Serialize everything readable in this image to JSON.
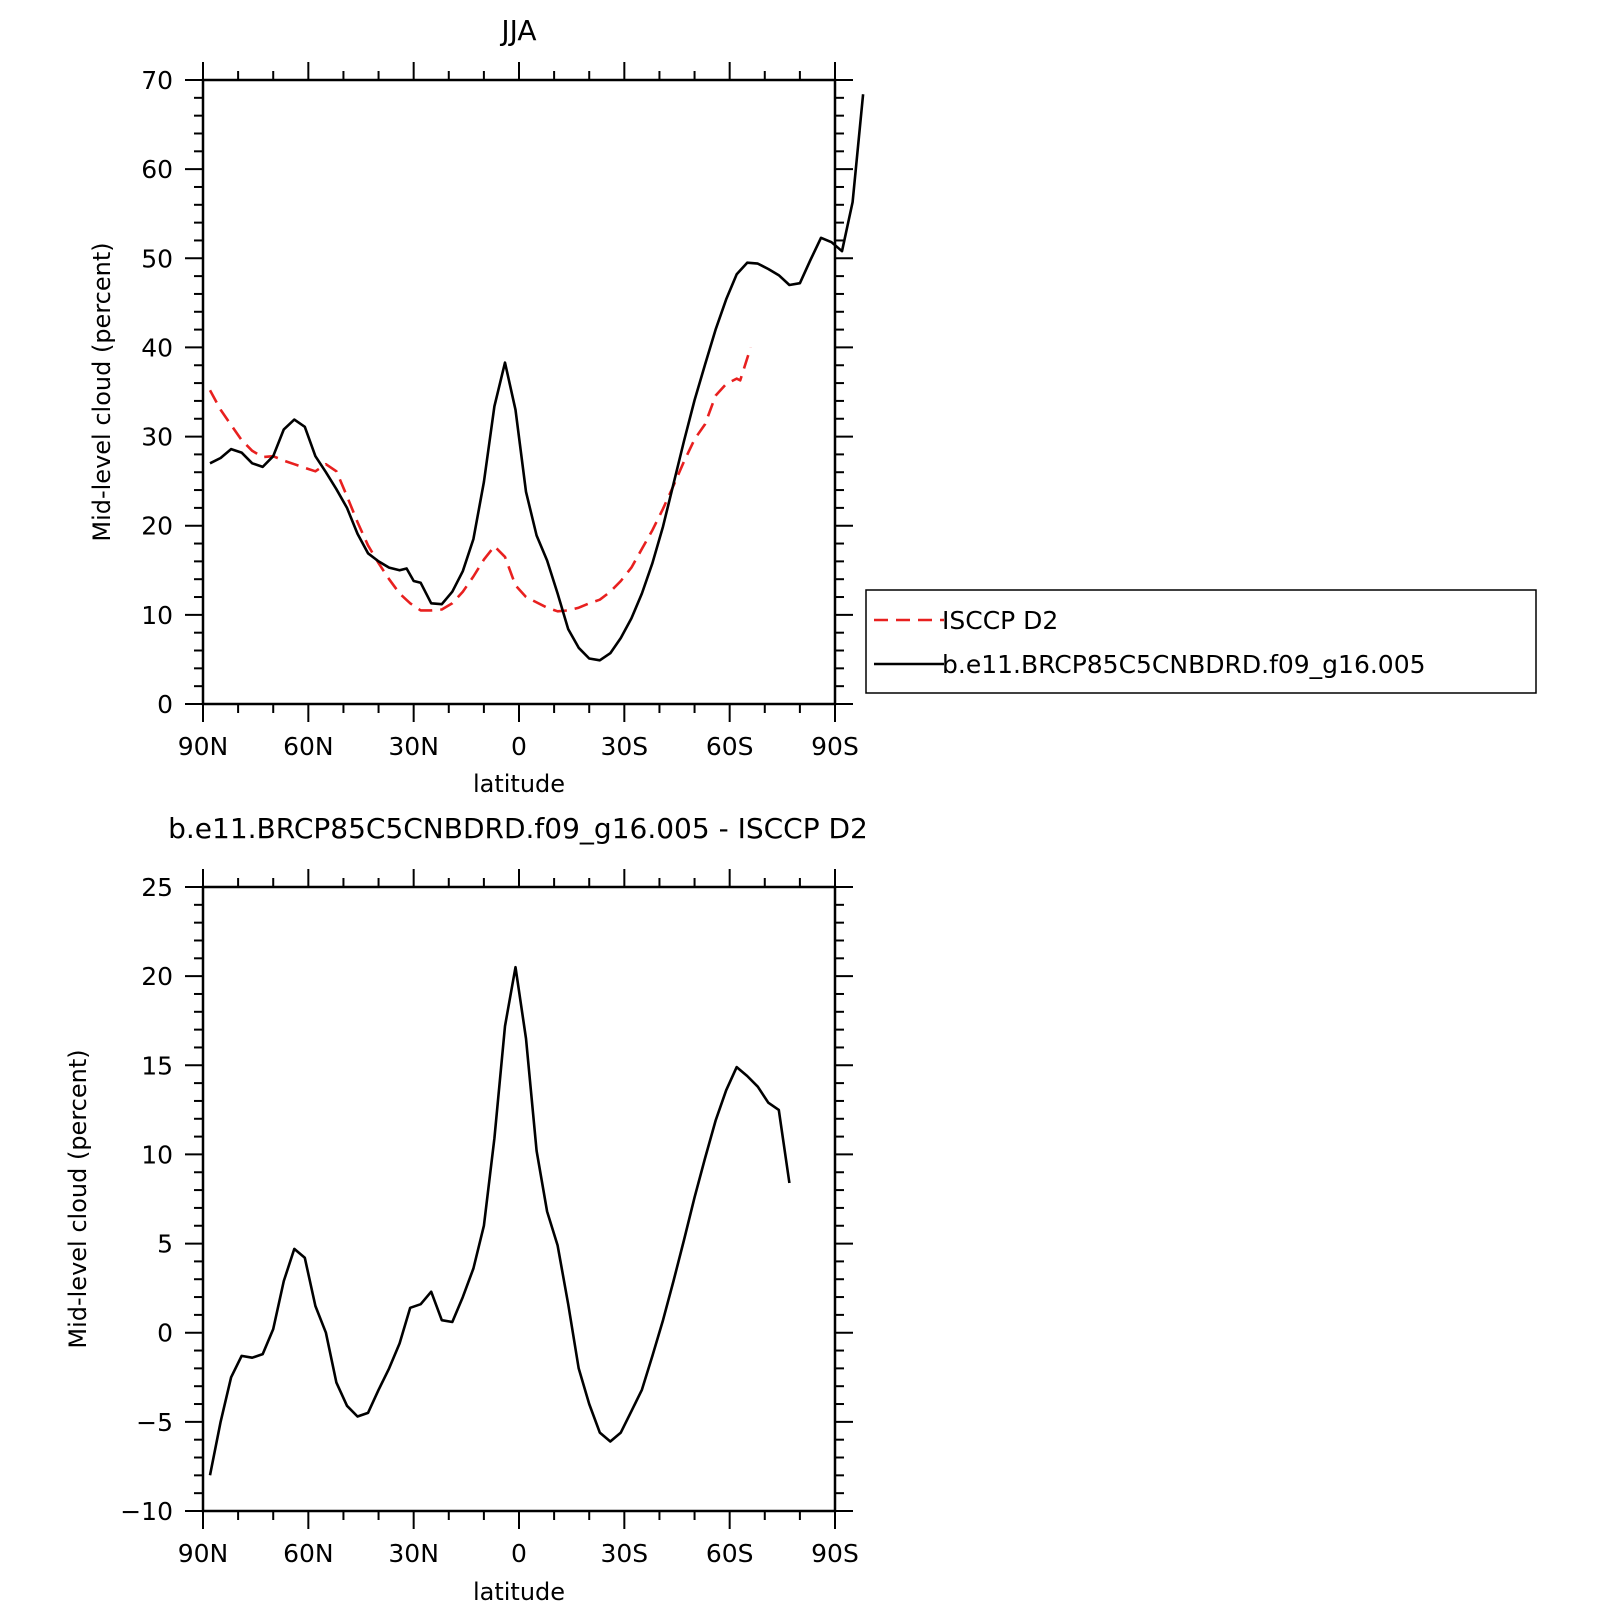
{
  "chart_data": [
    {
      "type": "line",
      "title": "JJA",
      "xlabel": "latitude",
      "ylabel": "Mid-level cloud (percent)",
      "xlim": [
        90,
        -90
      ],
      "ylim": [
        0,
        70
      ],
      "x_ticks": [
        {
          "value": 90,
          "label": "90N"
        },
        {
          "value": 60,
          "label": "60N"
        },
        {
          "value": 30,
          "label": "30N"
        },
        {
          "value": 0,
          "label": "0"
        },
        {
          "value": -30,
          "label": "30S"
        },
        {
          "value": -60,
          "label": "60S"
        },
        {
          "value": -90,
          "label": "90S"
        }
      ],
      "y_ticks": [
        {
          "value": 0,
          "label": "0"
        },
        {
          "value": 10,
          "label": "10"
        },
        {
          "value": 20,
          "label": "20"
        },
        {
          "value": 30,
          "label": "30"
        },
        {
          "value": 40,
          "label": "40"
        },
        {
          "value": 50,
          "label": "50"
        },
        {
          "value": 60,
          "label": "60"
        },
        {
          "value": 70,
          "label": "70"
        }
      ],
      "grid": false,
      "legend": {
        "placement": "right",
        "entries": [
          "ISCCP D2",
          "b.e11.BRCP85C5CNBDRD.f09_g16.005"
        ]
      },
      "series": [
        {
          "name": "ISCCP D2",
          "color": "#e8201f",
          "dash": "dashed",
          "points": [
            [
              88,
              35.2
            ],
            [
              85,
              33
            ],
            [
              82,
              31.3
            ],
            [
              79,
              29.6
            ],
            [
              76,
              28.4
            ],
            [
              73,
              27.7
            ],
            [
              70,
              27.8
            ],
            [
              67,
              27.3
            ],
            [
              64,
              26.9
            ],
            [
              61,
              26.5
            ],
            [
              58,
              26.1
            ],
            [
              55,
              26.9
            ],
            [
              52,
              26.1
            ],
            [
              49,
              23.3
            ],
            [
              46,
              20.4
            ],
            [
              43,
              17.8
            ],
            [
              40,
              15.8
            ],
            [
              37,
              14
            ],
            [
              34,
              12.4
            ],
            [
              31,
              11.3
            ],
            [
              28,
              10.5
            ],
            [
              25,
              10.5
            ],
            [
              22,
              10.6
            ],
            [
              19,
              11.3
            ],
            [
              16,
              12.6
            ],
            [
              13,
              14.3
            ],
            [
              10,
              16.2
            ],
            [
              7,
              17.7
            ],
            [
              4,
              16.5
            ],
            [
              1,
              13.3
            ],
            [
              -2,
              12
            ],
            [
              -5,
              11.4
            ],
            [
              -8,
              10.8
            ],
            [
              -11,
              10.4
            ],
            [
              -14,
              10.5
            ],
            [
              -17,
              10.8
            ],
            [
              -20,
              11.3
            ],
            [
              -23,
              11.7
            ],
            [
              -26,
              12.6
            ],
            [
              -29,
              13.8
            ],
            [
              -32,
              15.3
            ],
            [
              -35,
              17.4
            ],
            [
              -38,
              19.5
            ],
            [
              -41,
              21.9
            ],
            [
              -44,
              24.5
            ],
            [
              -47,
              27.2
            ],
            [
              -50,
              29.7
            ],
            [
              -53,
              31.4
            ],
            [
              -56,
              34.6
            ],
            [
              -59,
              35.9
            ],
            [
              -62,
              36.5
            ],
            [
              -63,
              36.3
            ],
            [
              -66,
              40
            ]
          ]
        },
        {
          "name": "b.e11.BRCP85C5CNBDRD.f09_g16.005",
          "color": "#000000",
          "dash": "solid",
          "points": [
            [
              88,
              27
            ],
            [
              85,
              27.6
            ],
            [
              82,
              28.6
            ],
            [
              79,
              28.2
            ],
            [
              76,
              27
            ],
            [
              73,
              26.6
            ],
            [
              70,
              27.8
            ],
            [
              67,
              30.8
            ],
            [
              64,
              31.9
            ],
            [
              61,
              31.1
            ],
            [
              58,
              27.8
            ],
            [
              55,
              26
            ],
            [
              52,
              24.1
            ],
            [
              49,
              22
            ],
            [
              46,
              19.1
            ],
            [
              43,
              16.9
            ],
            [
              40,
              16
            ],
            [
              37,
              15.3
            ],
            [
              34,
              15
            ],
            [
              32,
              15.2
            ],
            [
              30,
              13.8
            ],
            [
              28,
              13.6
            ],
            [
              25,
              11.3
            ],
            [
              22,
              11.2
            ],
            [
              19,
              12.6
            ],
            [
              16,
              14.9
            ],
            [
              13,
              18.5
            ],
            [
              10,
              24.9
            ],
            [
              7,
              33.4
            ],
            [
              4,
              38.3
            ],
            [
              1,
              33
            ],
            [
              -2,
              23.8
            ],
            [
              -5,
              18.9
            ],
            [
              -8,
              16.1
            ],
            [
              -11,
              12.4
            ],
            [
              -14,
              8.4
            ],
            [
              -17,
              6.3
            ],
            [
              -20,
              5.1
            ],
            [
              -23,
              4.9
            ],
            [
              -26,
              5.7
            ],
            [
              -29,
              7.4
            ],
            [
              -32,
              9.6
            ],
            [
              -35,
              12.4
            ],
            [
              -38,
              15.8
            ],
            [
              -41,
              19.9
            ],
            [
              -44,
              24.7
            ],
            [
              -47,
              29.5
            ],
            [
              -50,
              34.1
            ],
            [
              -53,
              38.1
            ],
            [
              -56,
              42
            ],
            [
              -59,
              45.4
            ],
            [
              -62,
              48.2
            ],
            [
              -65,
              49.5
            ],
            [
              -68,
              49.4
            ],
            [
              -71,
              48.8
            ],
            [
              -74,
              48.1
            ],
            [
              -77,
              47
            ],
            [
              -80,
              47.2
            ],
            [
              -83,
              49.8
            ],
            [
              -86,
              52.3
            ],
            [
              -89,
              51.8
            ],
            [
              -92,
              50.8
            ],
            [
              -95,
              56.3
            ],
            [
              -98,
              68.4
            ]
          ]
        }
      ]
    },
    {
      "type": "line",
      "title": "b.e11.BRCP85C5CNBDRD.f09_g16.005 - ISCCP D2",
      "xlabel": "latitude",
      "ylabel": "Mid-level cloud (percent)",
      "xlim": [
        90,
        -90
      ],
      "ylim": [
        -10,
        25
      ],
      "x_ticks": [
        {
          "value": 90,
          "label": "90N"
        },
        {
          "value": 60,
          "label": "60N"
        },
        {
          "value": 30,
          "label": "30N"
        },
        {
          "value": 0,
          "label": "0"
        },
        {
          "value": -30,
          "label": "30S"
        },
        {
          "value": -60,
          "label": "60S"
        },
        {
          "value": -90,
          "label": "90S"
        }
      ],
      "y_ticks": [
        {
          "value": -10,
          "label": "−10"
        },
        {
          "value": -5,
          "label": "−5"
        },
        {
          "value": 0,
          "label": "0"
        },
        {
          "value": 5,
          "label": "5"
        },
        {
          "value": 10,
          "label": "10"
        },
        {
          "value": 15,
          "label": "15"
        },
        {
          "value": 20,
          "label": "20"
        },
        {
          "value": 25,
          "label": "25"
        }
      ],
      "grid": false,
      "series": [
        {
          "color": "#000000",
          "dash": "solid",
          "points": [
            [
              88,
              -8
            ],
            [
              85,
              -5
            ],
            [
              82,
              -2.5
            ],
            [
              79,
              -1.3
            ],
            [
              76,
              -1.4
            ],
            [
              73,
              -1.2
            ],
            [
              70,
              0.2
            ],
            [
              67,
              2.9
            ],
            [
              64,
              4.7
            ],
            [
              61,
              4.2
            ],
            [
              58,
              1.5
            ],
            [
              55,
              0
            ],
            [
              52,
              -2.8
            ],
            [
              49,
              -4.1
            ],
            [
              46,
              -4.7
            ],
            [
              43,
              -4.5
            ],
            [
              40,
              -3.2
            ],
            [
              37,
              -2
            ],
            [
              34,
              -0.6
            ],
            [
              31,
              1.4
            ],
            [
              28,
              1.6
            ],
            [
              25,
              2.3
            ],
            [
              22,
              0.7
            ],
            [
              19,
              0.6
            ],
            [
              16,
              2
            ],
            [
              13,
              3.6
            ],
            [
              10,
              6
            ],
            [
              7,
              10.9
            ],
            [
              4,
              17.2
            ],
            [
              1,
              20.5
            ],
            [
              -2,
              16.5
            ],
            [
              -5,
              10.2
            ],
            [
              -8,
              6.8
            ],
            [
              -11,
              4.9
            ],
            [
              -14,
              1.6
            ],
            [
              -17,
              -2
            ],
            [
              -20,
              -4
            ],
            [
              -23,
              -5.6
            ],
            [
              -26,
              -6.1
            ],
            [
              -29,
              -5.6
            ],
            [
              -32,
              -4.4
            ],
            [
              -35,
              -3.2
            ],
            [
              -38,
              -1.3
            ],
            [
              -41,
              0.7
            ],
            [
              -44,
              2.9
            ],
            [
              -47,
              5.2
            ],
            [
              -50,
              7.6
            ],
            [
              -53,
              9.8
            ],
            [
              -56,
              11.9
            ],
            [
              -59,
              13.6
            ],
            [
              -62,
              14.9
            ],
            [
              -65,
              14.4
            ],
            [
              -68,
              13.8
            ],
            [
              -71,
              12.9
            ],
            [
              -74,
              12.5
            ],
            [
              -77,
              8.4
            ]
          ]
        }
      ]
    }
  ]
}
